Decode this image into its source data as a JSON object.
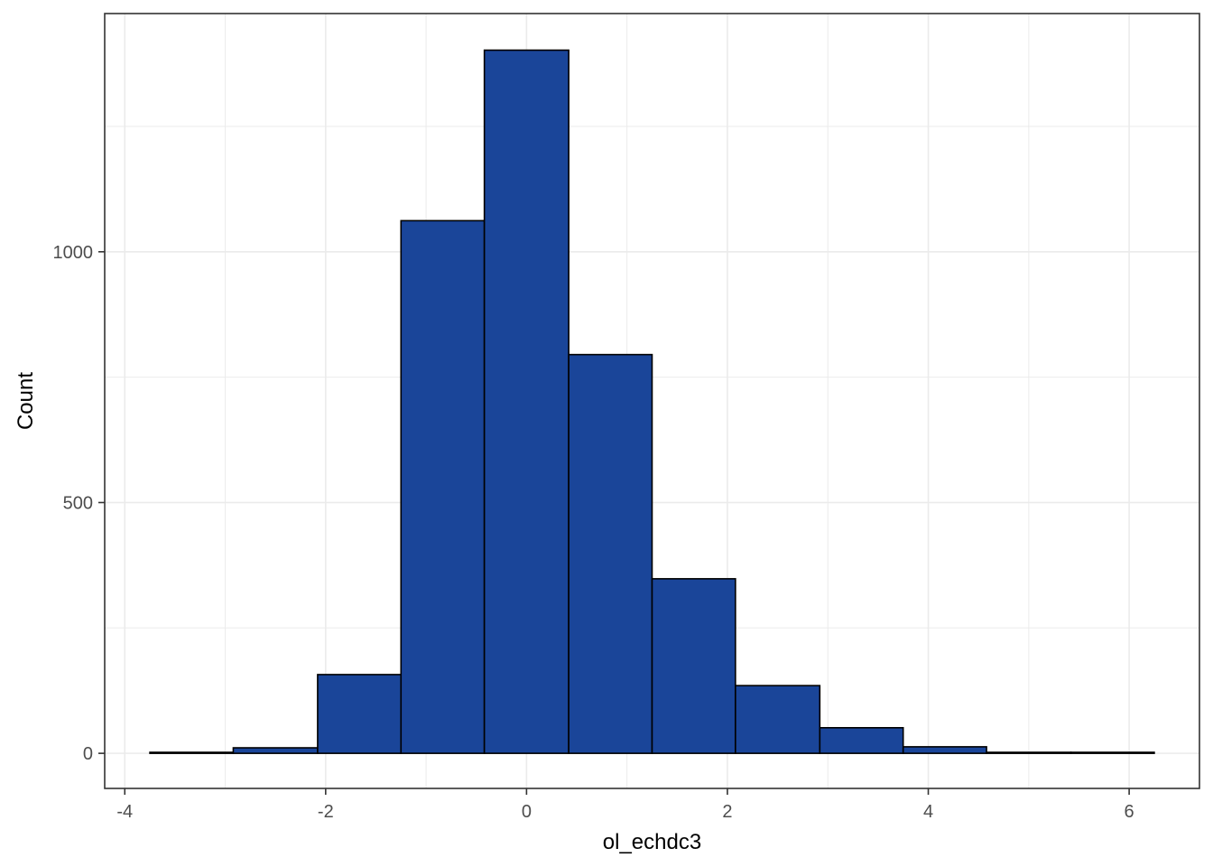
{
  "chart_data": {
    "type": "bar",
    "title": "",
    "xlabel": "ol_echdc3",
    "ylabel": "Count",
    "xlim": [
      -4.2,
      6.7
    ],
    "ylim": [
      -70,
      1475
    ],
    "x_ticks": [
      -4,
      -2,
      0,
      2,
      4,
      6
    ],
    "y_ticks": [
      0,
      500,
      1000
    ],
    "grid": true,
    "colors": {
      "bar_fill": "#1a4599",
      "bar_edge": "#000000",
      "panel_border": "#333333",
      "grid": "#ebebeb"
    },
    "bins": [
      {
        "x0": -3.75,
        "x1": -2.92,
        "count": 2
      },
      {
        "x0": -2.92,
        "x1": -2.08,
        "count": 11
      },
      {
        "x0": -2.08,
        "x1": -1.25,
        "count": 157
      },
      {
        "x0": -1.25,
        "x1": -0.42,
        "count": 1062
      },
      {
        "x0": -0.42,
        "x1": 0.42,
        "count": 1402
      },
      {
        "x0": 0.42,
        "x1": 1.25,
        "count": 795
      },
      {
        "x0": 1.25,
        "x1": 2.08,
        "count": 348
      },
      {
        "x0": 2.08,
        "x1": 2.92,
        "count": 135
      },
      {
        "x0": 2.92,
        "x1": 3.75,
        "count": 51
      },
      {
        "x0": 3.75,
        "x1": 4.58,
        "count": 13
      },
      {
        "x0": 4.58,
        "x1": 5.42,
        "count": 2
      },
      {
        "x0": 5.42,
        "x1": 6.25,
        "count": 2
      }
    ]
  }
}
